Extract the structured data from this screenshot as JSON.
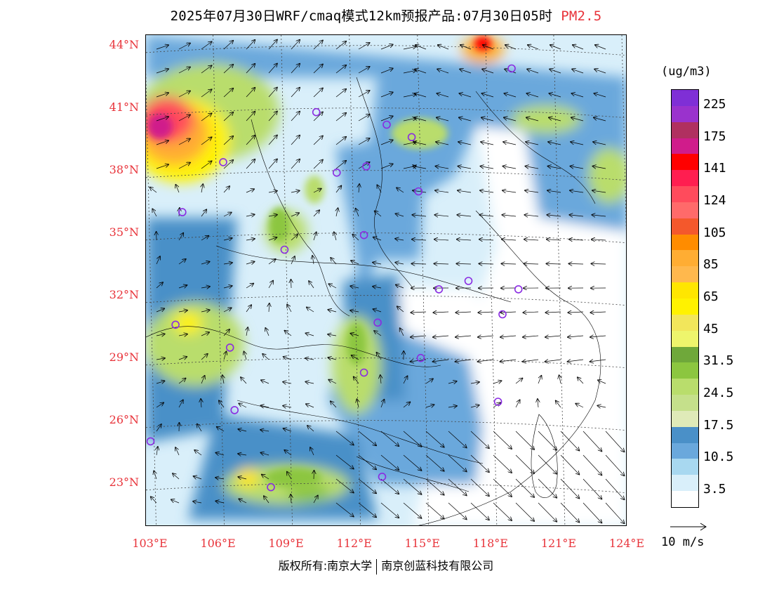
{
  "title": {
    "main": "2025年07月30日WRF/cmaq模式12km预报产品:07月30日05时",
    "pollutant": "PM2.5"
  },
  "axes": {
    "lat_labels": [
      "44°N",
      "41°N",
      "38°N",
      "35°N",
      "32°N",
      "29°N",
      "26°N",
      "23°N"
    ],
    "lon_labels": [
      "103°E",
      "106°E",
      "109°E",
      "112°E",
      "115°E",
      "118°E",
      "121°E",
      "124°E"
    ],
    "lat_range": [
      20.9,
      44.5
    ],
    "lon_range": [
      102.8,
      124
    ]
  },
  "legend": {
    "unit": "(ug/m3)",
    "labels": [
      "225",
      "175",
      "141",
      "124",
      "105",
      "85",
      "65",
      "45",
      "31.5",
      "24.5",
      "17.5",
      "10.5",
      "3.5"
    ],
    "colors_top_to_bottom": [
      "#7f2fd6",
      "#9a32cd",
      "#b03060",
      "#d01c8b",
      "#ff0000",
      "#ff1e50",
      "#ff4b5c",
      "#ff6a6a",
      "#f4582c",
      "#ff8c00",
      "#ffad33",
      "#ffb84d",
      "#ffe600",
      "#fff200",
      "#f2e65b",
      "#eef56c",
      "#6fa83a",
      "#8cc63f",
      "#b9dd6c",
      "#c5e08b",
      "#dfeab8",
      "#4a90c8",
      "#6aa8dc",
      "#a8d8f0",
      "#d9effa",
      "#ffffff"
    ]
  },
  "wind_reference": {
    "label": "10 m/s"
  },
  "city_markers": [
    {
      "lon": 118.9,
      "lat": 42.9
    },
    {
      "lon": 110.3,
      "lat": 40.8
    },
    {
      "lon": 113.4,
      "lat": 40.2
    },
    {
      "lon": 114.5,
      "lat": 39.6
    },
    {
      "lon": 106.2,
      "lat": 38.4
    },
    {
      "lon": 111.2,
      "lat": 37.9
    },
    {
      "lon": 112.5,
      "lat": 38.2
    },
    {
      "lon": 114.8,
      "lat": 37.0
    },
    {
      "lon": 104.4,
      "lat": 36.0
    },
    {
      "lon": 112.4,
      "lat": 34.9
    },
    {
      "lon": 108.9,
      "lat": 34.2
    },
    {
      "lon": 117.0,
      "lat": 32.7
    },
    {
      "lon": 115.7,
      "lat": 32.3
    },
    {
      "lon": 119.2,
      "lat": 32.3
    },
    {
      "lon": 104.1,
      "lat": 30.6
    },
    {
      "lon": 113.0,
      "lat": 30.7
    },
    {
      "lon": 118.5,
      "lat": 31.1
    },
    {
      "lon": 106.5,
      "lat": 29.5
    },
    {
      "lon": 114.9,
      "lat": 29.0
    },
    {
      "lon": 112.4,
      "lat": 28.3
    },
    {
      "lon": 106.7,
      "lat": 26.5
    },
    {
      "lon": 118.3,
      "lat": 26.9
    },
    {
      "lon": 103.0,
      "lat": 25.0
    },
    {
      "lon": 113.2,
      "lat": 23.3
    },
    {
      "lon": 108.3,
      "lat": 22.8
    }
  ],
  "copyright": {
    "left": "版权所有:南京大学",
    "right": "南京创蓝科技有限公司"
  }
}
